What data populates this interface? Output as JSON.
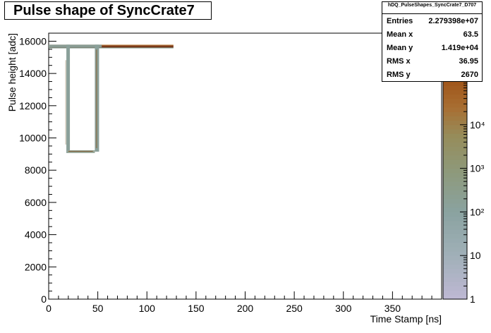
{
  "title": "Pulse shape of SyncCrate7",
  "stats": {
    "name": "hDQ_PulseShapes_SyncCrate7_D707",
    "rows": [
      {
        "key": "Entries",
        "value": "2.279398e+07"
      },
      {
        "key": "Mean x",
        "value": "63.5"
      },
      {
        "key": "Mean y",
        "value": "1.419e+04"
      },
      {
        "key": "RMS x",
        "value": "36.95"
      },
      {
        "key": "RMS y",
        "value": "2670"
      }
    ]
  },
  "chart_data": {
    "type": "heatmap",
    "title": "Pulse shape of SyncCrate7",
    "xlabel": "Time Stamp [ns]",
    "ylabel": "Pulse height [adc]",
    "xlim": [
      0,
      400
    ],
    "ylim": [
      0,
      16500
    ],
    "x_ticks": [
      0,
      50,
      100,
      150,
      200,
      250,
      300,
      350
    ],
    "y_ticks": [
      0,
      2000,
      4000,
      6000,
      8000,
      10000,
      12000,
      14000,
      16000
    ],
    "z_scale": "log",
    "z_ticks": [
      {
        "value": 1,
        "label": "1"
      },
      {
        "value": 10,
        "label": "10"
      },
      {
        "value": 100,
        "label": "10²"
      },
      {
        "value": 1000,
        "label": "10³"
      },
      {
        "value": 10000,
        "label": "10⁴"
      }
    ],
    "zlim": [
      1,
      100000
    ],
    "baseline": {
      "y": 15650,
      "x_start": 0,
      "x_end": 127
    },
    "pulse": {
      "drop_x": 19,
      "bottom_y": 9150,
      "rise_x": 50,
      "top_y": 15700
    },
    "colors": {
      "baseline": "#7a3a1a",
      "pulse": "#8aa09a",
      "palette_low": "#b8b0c8",
      "palette_mid": "#8a9a7a",
      "palette_high": "#a0561a"
    }
  }
}
